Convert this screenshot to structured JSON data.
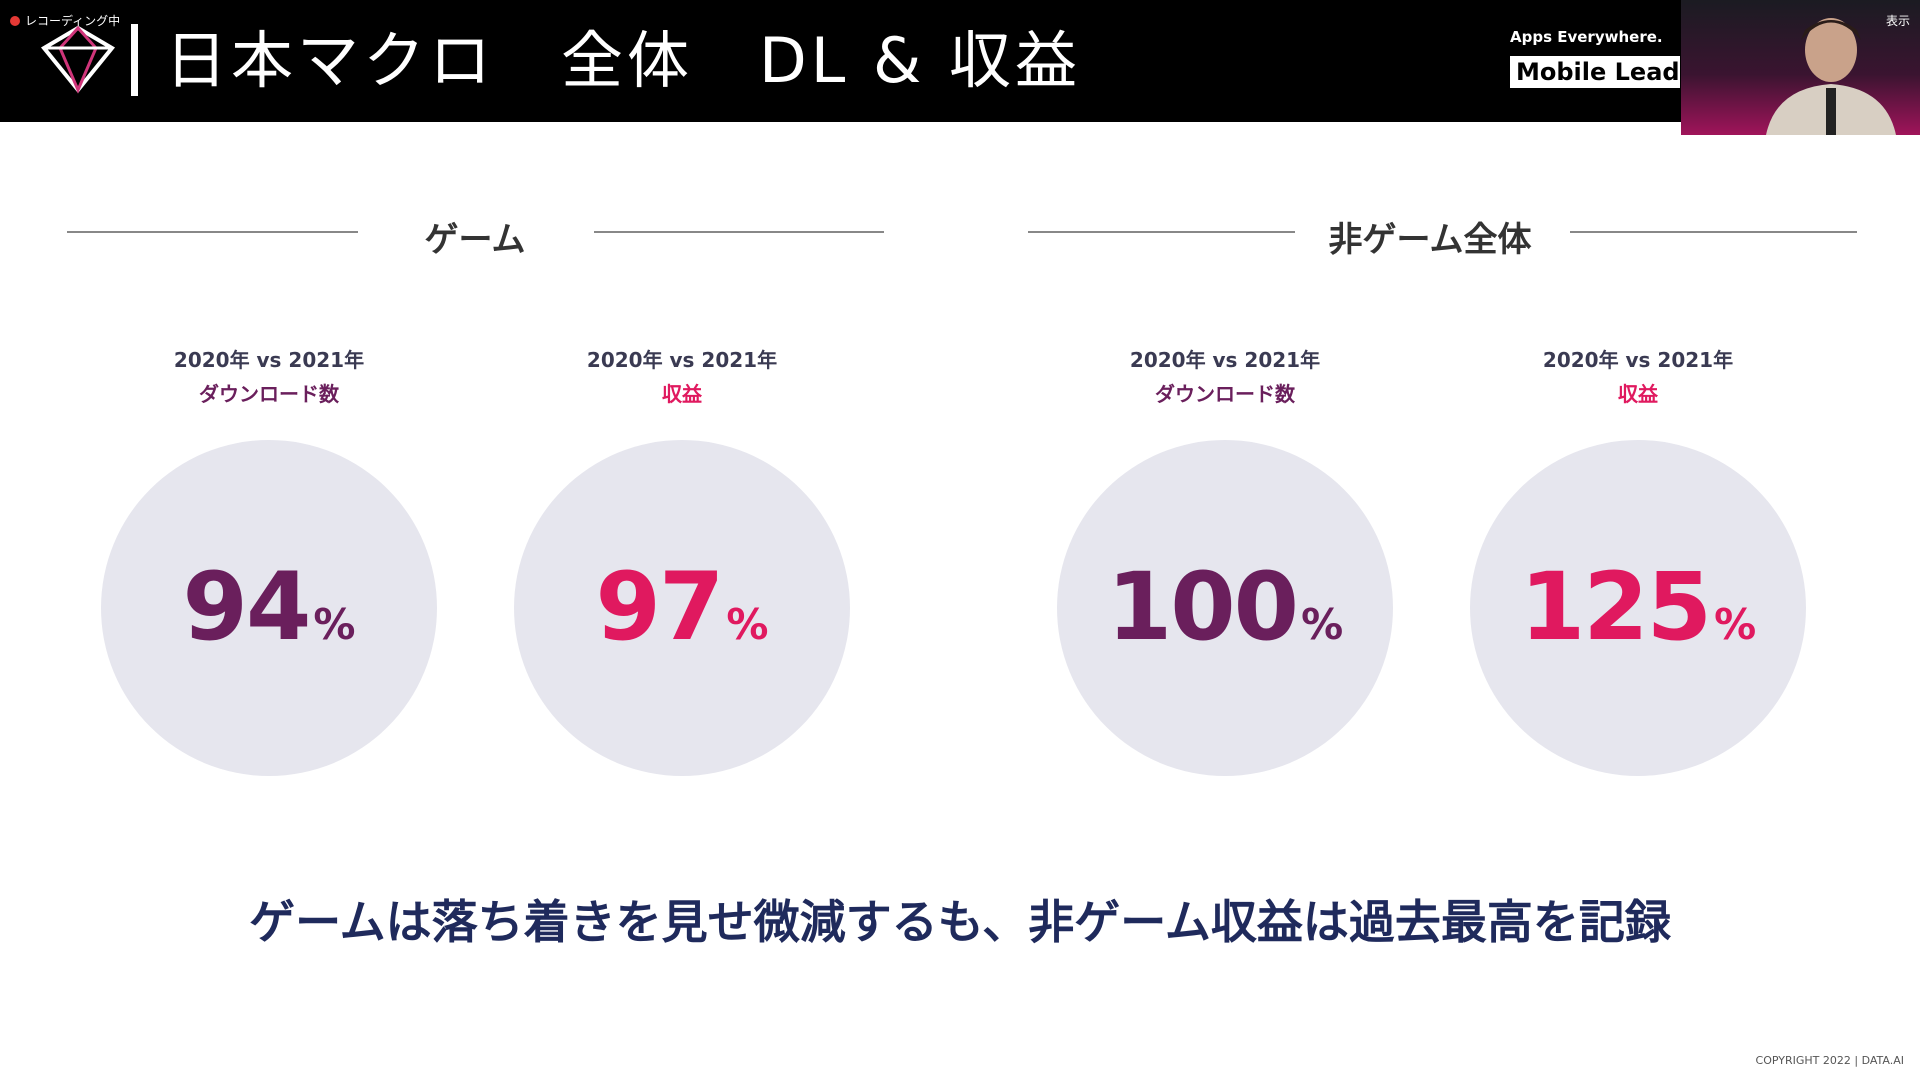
{
  "recording": "レコーディング中",
  "view_button": "表示",
  "header": {
    "title": "日本マクロ　全体　DL & 収益",
    "tagline": "Apps Everywhere.",
    "badge": "Mobile Lead"
  },
  "sections": [
    {
      "heading": "ゲーム",
      "stats": [
        {
          "period": "2020年 vs 2021年",
          "metric": "ダウンロード数",
          "value": 94,
          "unit": "%"
        },
        {
          "period": "2020年 vs 2021年",
          "metric": "収益",
          "value": 97,
          "unit": "%"
        }
      ]
    },
    {
      "heading": "非ゲーム全体",
      "stats": [
        {
          "period": "2020年 vs 2021年",
          "metric": "ダウンロード数",
          "value": 100,
          "unit": "%"
        },
        {
          "period": "2020年 vs 2021年",
          "metric": "収益",
          "value": 125,
          "unit": "%"
        }
      ]
    }
  ],
  "headline": "ゲームは落ち着きを見せ微減するも、非ゲーム収益は過去最高を記録",
  "copyright": "COPYRIGHT 2022 | DATA.AI"
}
